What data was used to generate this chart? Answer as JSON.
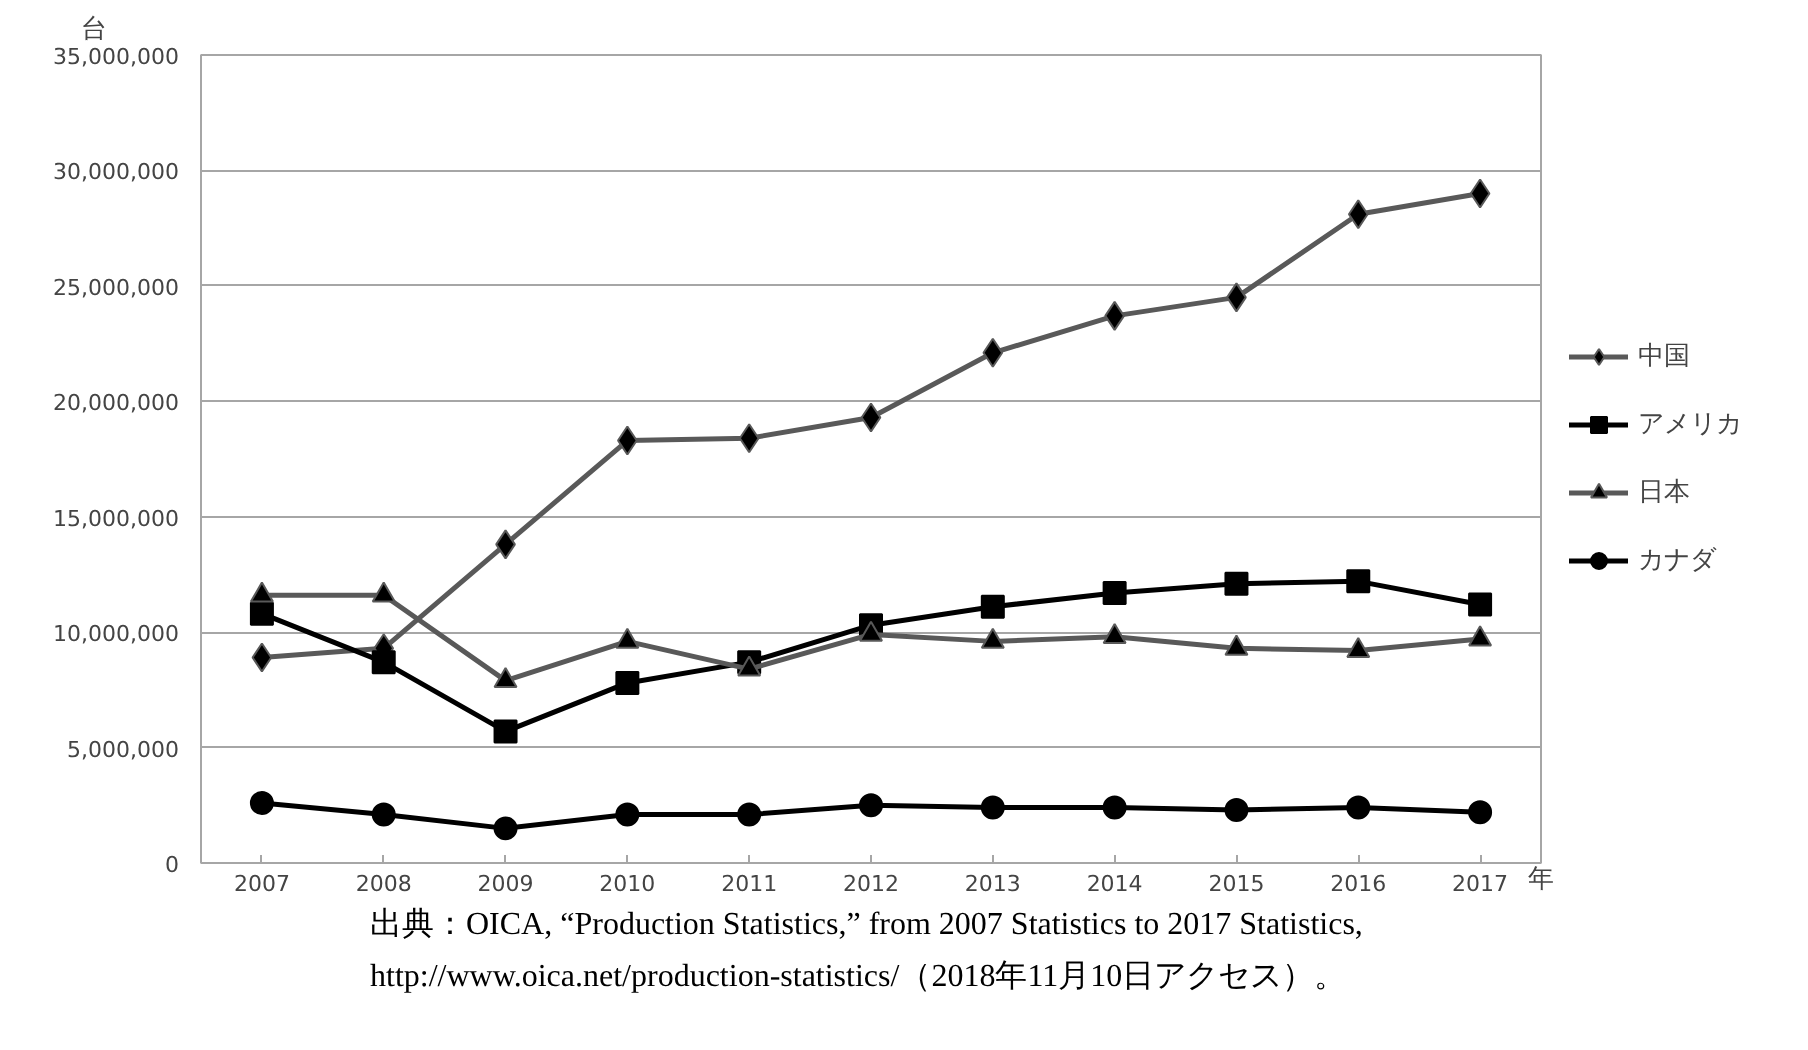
{
  "chart_data": {
    "type": "line",
    "ylabel": "台",
    "xlabel": "年",
    "categories": [
      "2007",
      "2008",
      "2009",
      "2010",
      "2011",
      "2012",
      "2013",
      "2014",
      "2015",
      "2016",
      "2017"
    ],
    "series": [
      {
        "name": "中国",
        "color": "#595959",
        "marker": "diamond",
        "values": [
          8900000,
          9300000,
          13800000,
          18300000,
          18400000,
          19300000,
          22100000,
          23700000,
          24500000,
          28100000,
          29000000
        ]
      },
      {
        "name": "アメリカ",
        "color": "#000000",
        "marker": "square",
        "values": [
          10800000,
          8700000,
          5700000,
          7800000,
          8700000,
          10300000,
          11100000,
          11700000,
          12100000,
          12200000,
          11200000
        ]
      },
      {
        "name": "日本",
        "color": "#595959",
        "marker": "triangle",
        "values": [
          11600000,
          11600000,
          7900000,
          9600000,
          8400000,
          9900000,
          9600000,
          9800000,
          9300000,
          9200000,
          9700000
        ]
      },
      {
        "name": "カナダ",
        "color": "#000000",
        "marker": "circle",
        "values": [
          2600000,
          2100000,
          1500000,
          2100000,
          2100000,
          2500000,
          2400000,
          2400000,
          2300000,
          2400000,
          2200000
        ]
      }
    ],
    "ylim": [
      0,
      35000000
    ],
    "yticks": [
      {
        "value": 0,
        "label": "0"
      },
      {
        "value": 5000000,
        "label": "5,000,000"
      },
      {
        "value": 10000000,
        "label": "10,000,000"
      },
      {
        "value": 15000000,
        "label": "15,000,000"
      },
      {
        "value": 20000000,
        "label": "20,000,000"
      },
      {
        "value": 25000000,
        "label": "25,000,000"
      },
      {
        "value": 30000000,
        "label": "30,000,000"
      },
      {
        "value": 35000000,
        "label": "35,000,000"
      }
    ],
    "grid": "y",
    "legend": "right",
    "line_style": "solid",
    "annotations": [
      "出典：OICA, “Production Statistics,” from 2007 Statistics to 2017 Statistics, http://www.oica.net/production-statistics/（2018年11月10日アクセス）。"
    ]
  }
}
